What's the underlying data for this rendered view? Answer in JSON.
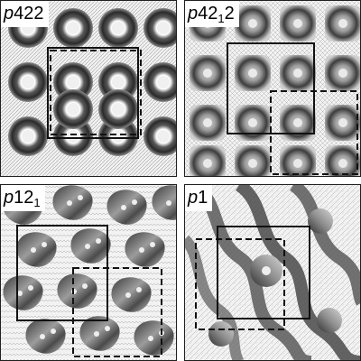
{
  "panels": [
    {
      "id": "p422",
      "label_italic": "p",
      "label_rest": "422",
      "label_sub": "",
      "label_tail": ""
    },
    {
      "id": "p4212",
      "label_italic": "p",
      "label_rest": "42",
      "label_sub": "1",
      "label_tail": "2"
    },
    {
      "id": "p121",
      "label_italic": "p",
      "label_rest": "12",
      "label_sub": "1",
      "label_tail": ""
    },
    {
      "id": "p1",
      "label_italic": "p",
      "label_rest": "1",
      "label_sub": "",
      "label_tail": ""
    }
  ],
  "colors": {
    "ink": "#202020",
    "background": "#f2f2f2",
    "contour": "#9a9a9a"
  }
}
